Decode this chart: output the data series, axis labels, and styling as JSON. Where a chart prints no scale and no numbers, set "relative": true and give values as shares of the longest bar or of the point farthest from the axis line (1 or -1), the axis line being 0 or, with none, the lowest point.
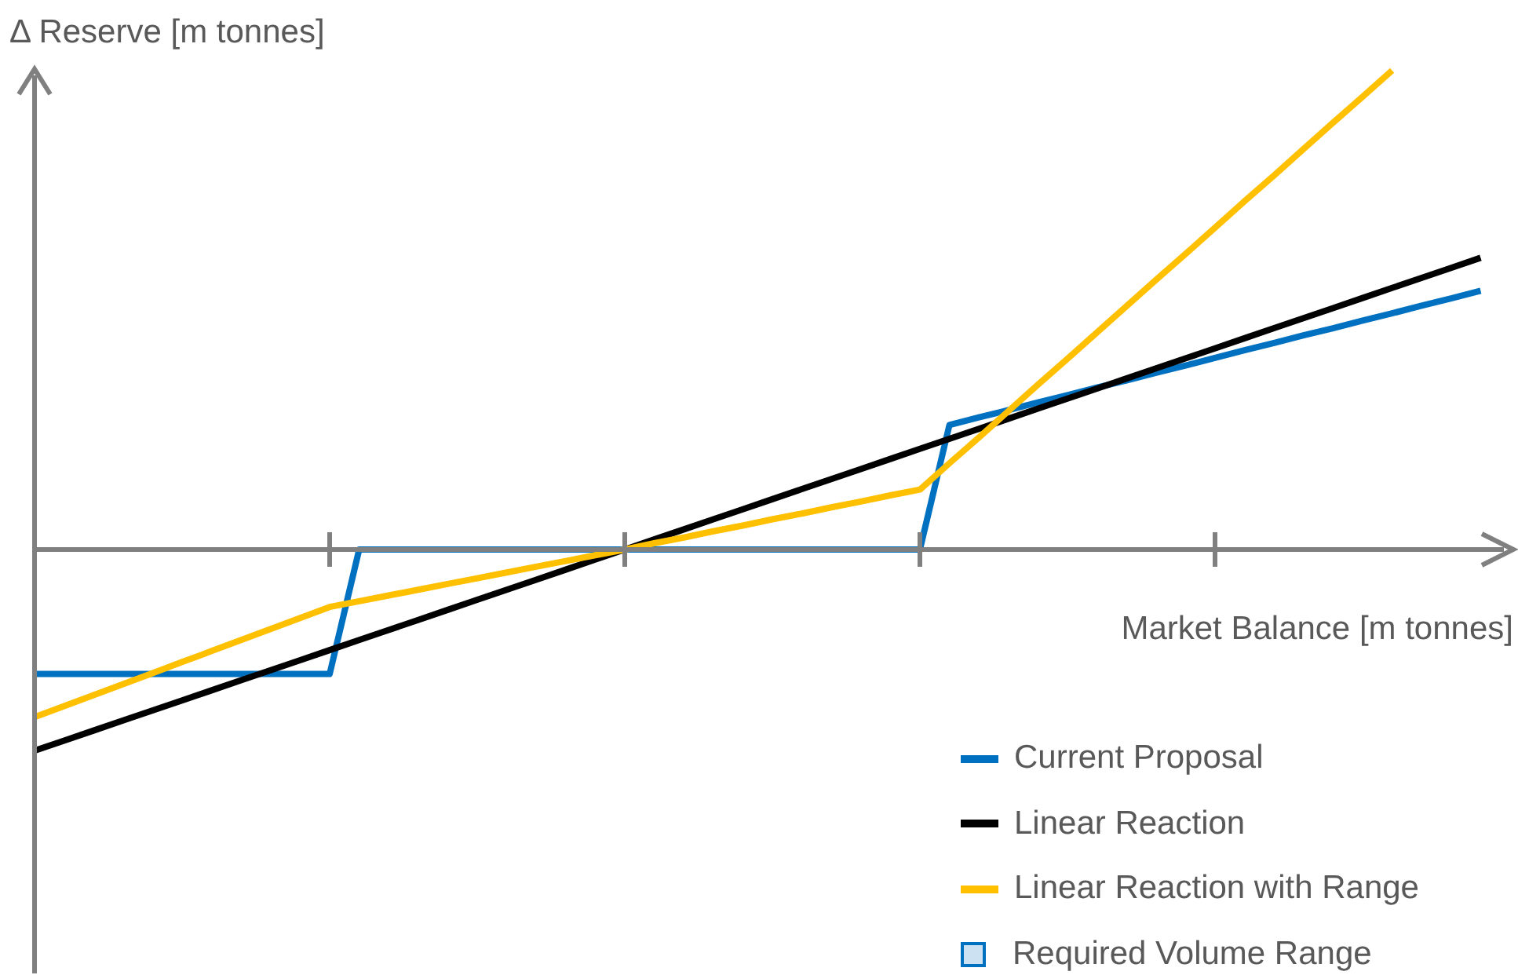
{
  "chart_data": {
    "type": "line",
    "relative": true,
    "xlabel": "Market Balance [m tonnes]",
    "ylabel": "Δ Reserve [m tonnes]",
    "legend": "bottom right",
    "line_style": "solid",
    "categories": [
      null,
      null,
      null,
      null,
      null,
      null,
      null,
      null,
      null,
      null,
      null,
      null,
      null,
      null,
      null,
      null,
      null,
      null,
      null,
      null,
      null,
      null,
      null,
      null,
      null,
      null,
      null,
      null,
      null,
      null,
      null,
      null,
      null,
      null,
      null,
      null,
      null,
      null,
      null,
      null,
      null,
      null,
      null,
      null,
      null,
      null,
      null,
      null,
      null,
      null,
      null
    ],
    "series": [
      {
        "name": "Current Proposal",
        "color": "#0070c0",
        "values": [
          -0.26,
          -0.26,
          -0.26,
          -0.26,
          -0.26,
          -0.26,
          -0.26,
          -0.26,
          -0.26,
          -0.26,
          -0.26,
          0,
          0,
          0,
          0,
          0,
          0,
          0,
          0,
          0,
          0,
          0,
          0,
          0,
          0,
          0,
          0,
          0,
          0,
          0,
          0,
          0.26,
          0.276,
          0.291,
          0.307,
          0.322,
          0.338,
          0.353,
          0.369,
          0.384,
          0.4,
          0.416,
          0.431,
          0.447,
          0.462,
          0.478,
          0.493,
          0.509,
          0.524,
          0.54,
          null
        ]
      },
      {
        "name": "Linear Reaction",
        "color": "#000000",
        "values": [
          -0.42,
          -0.399,
          -0.378,
          -0.357,
          -0.336,
          -0.315,
          -0.294,
          -0.273,
          -0.252,
          -0.231,
          -0.21,
          -0.189,
          -0.168,
          -0.147,
          -0.126,
          -0.105,
          -0.084,
          -0.063,
          -0.042,
          -0.021,
          0,
          0.021,
          0.042,
          0.063,
          0.084,
          0.105,
          0.126,
          0.147,
          0.168,
          0.189,
          0.21,
          0.231,
          0.252,
          0.273,
          0.294,
          0.315,
          0.336,
          0.357,
          0.378,
          0.399,
          0.42,
          0.441,
          0.462,
          0.483,
          0.504,
          0.525,
          0.546,
          0.567,
          0.588,
          0.609,
          null
        ]
      },
      {
        "name": "Linear Reaction with Range",
        "color": "#ffc000",
        "values": [
          -0.35,
          -0.327,
          -0.304,
          -0.281,
          -0.258,
          -0.235,
          -0.212,
          -0.189,
          -0.166,
          -0.143,
          -0.12,
          -0.108,
          -0.096,
          -0.084,
          -0.072,
          -0.06,
          -0.048,
          -0.036,
          -0.024,
          -0.012,
          0,
          0.013,
          0.025,
          0.038,
          0.05,
          0.063,
          0.075,
          0.088,
          0.1,
          0.113,
          0.125,
          0.18,
          0.234,
          0.289,
          0.344,
          0.398,
          0.453,
          0.508,
          0.563,
          0.617,
          0.672,
          0.727,
          0.781,
          0.836,
          0.891,
          0.945,
          1,
          null,
          null,
          null,
          null
        ]
      },
      {
        "name": "Required Volume Range",
        "type": "area",
        "color": "#0070c0",
        "values": [
          null,
          null,
          null,
          null,
          null,
          null,
          null,
          null,
          null,
          null,
          null,
          null,
          null,
          null,
          null,
          null,
          null,
          null,
          null,
          null,
          null,
          null,
          null,
          null,
          null,
          null,
          null,
          null,
          null,
          null,
          null,
          null,
          null,
          null,
          null,
          null,
          null,
          null,
          null,
          null,
          null,
          null,
          null,
          null,
          null,
          null,
          null,
          null,
          null,
          null,
          null
        ]
      }
    ]
  }
}
